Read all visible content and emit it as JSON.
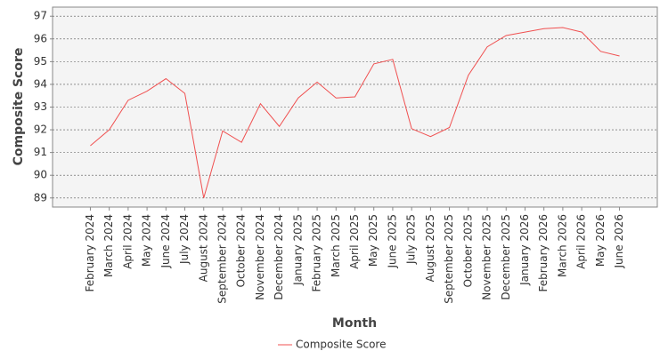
{
  "chart_data": {
    "type": "line",
    "x_label": "Month",
    "y_label": "Composite Score",
    "categories": [
      "February 2024",
      "March 2024",
      "April 2024",
      "May 2024",
      "June 2024",
      "July 2024",
      "August 2024",
      "September 2024",
      "October 2024",
      "November 2024",
      "December 2024",
      "January 2025",
      "February 2025",
      "March 2025",
      "April 2025",
      "May 2025",
      "June 2025",
      "July 2025",
      "August 2025",
      "September 2025",
      "October 2025",
      "November 2025",
      "December 2025",
      "January 2026",
      "February 2026",
      "March 2026",
      "April 2026",
      "May 2026",
      "June 2026"
    ],
    "series": [
      {
        "name": "Composite Score",
        "color": "#f05050",
        "values": [
          91.3,
          92.0,
          93.3,
          93.7,
          94.25,
          93.6,
          89.0,
          91.95,
          91.45,
          93.15,
          92.15,
          93.4,
          94.1,
          93.4,
          93.45,
          94.9,
          95.1,
          92.05,
          91.7,
          92.1,
          94.4,
          95.65,
          96.15,
          96.3,
          96.45,
          96.5,
          96.3,
          95.45,
          95.25
        ]
      }
    ],
    "ylim": [
      88.6,
      97.4
    ],
    "yticks": [
      89,
      90,
      91,
      92,
      93,
      94,
      95,
      96,
      97
    ],
    "grid": true,
    "legend": "bottom"
  }
}
